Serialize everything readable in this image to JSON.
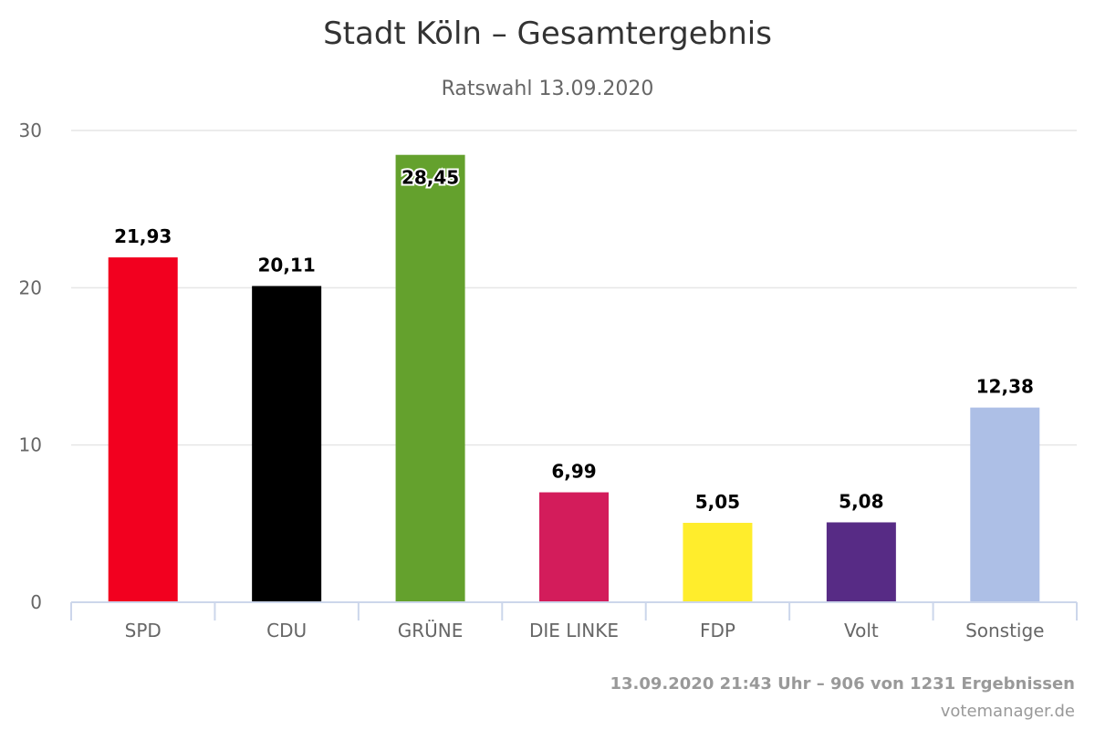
{
  "chart_data": {
    "type": "bar",
    "title": "Stadt Köln – Gesamtergebnis",
    "subtitle": "Ratswahl 13.09.2020",
    "categories": [
      "SPD",
      "CDU",
      "GRÜNE",
      "DIE LINKE",
      "FDP",
      "Volt",
      "Sonstige"
    ],
    "values": [
      21.93,
      20.11,
      28.45,
      6.99,
      5.05,
      5.08,
      12.38
    ],
    "value_labels": [
      "21,93",
      "20,11",
      "28,45",
      "6,99",
      "5,05",
      "5,08",
      "12,38"
    ],
    "colors": [
      "#f2001f",
      "#000000",
      "#64a12d",
      "#d31c5b",
      "#ffed2c",
      "#572b85",
      "#adbfe6"
    ],
    "ylim": [
      0,
      30
    ],
    "yticks": [
      0,
      10,
      20,
      30
    ],
    "grid": true,
    "legend": "none"
  },
  "footer": {
    "status": "13.09.2020 21:43 Uhr – 906 von 1231 Ergebnissen",
    "credit": "votemanager.de"
  }
}
